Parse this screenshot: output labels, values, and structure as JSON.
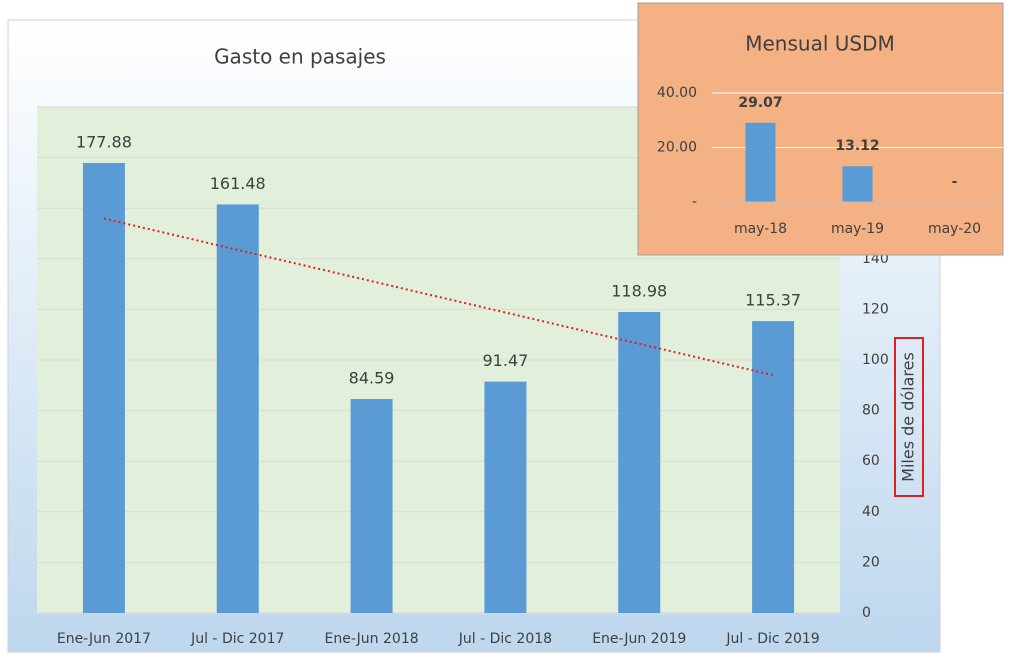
{
  "chart_data": [
    {
      "type": "bar",
      "title": "Gasto en pasajes",
      "y_axis_label": "Miles de dólares",
      "categories": [
        "Ene-Jun 2017",
        "Jul - Dic 2017",
        "Ene-Jun 2018",
        "Jul - Dic 2018",
        "Ene-Jun 2019",
        "Jul - Dic 2019"
      ],
      "values": [
        177.88,
        161.48,
        84.59,
        91.47,
        118.98,
        115.37
      ],
      "color": "#5b9bd5",
      "ylim": [
        0,
        200
      ],
      "yticks": [
        0,
        20,
        40,
        60,
        80,
        100,
        120,
        140,
        160,
        180,
        200
      ],
      "y_axis_side": "right",
      "grid": true,
      "trendline": true,
      "trendline_color": "#e02020"
    },
    {
      "type": "bar",
      "title": "Mensual USDM",
      "categories": [
        "may-18",
        "may-19",
        "may-20"
      ],
      "values": [
        29.07,
        13.12,
        0
      ],
      "value_labels": [
        "29.07",
        "13.12",
        "-"
      ],
      "color": "#5b9bd5",
      "ylim": [
        0,
        40
      ],
      "yticks": [
        {
          "value": 0,
          "label": "-"
        },
        {
          "value": 20,
          "label": "20.00"
        },
        {
          "value": 40,
          "label": "40.00"
        }
      ],
      "grid": true
    }
  ]
}
